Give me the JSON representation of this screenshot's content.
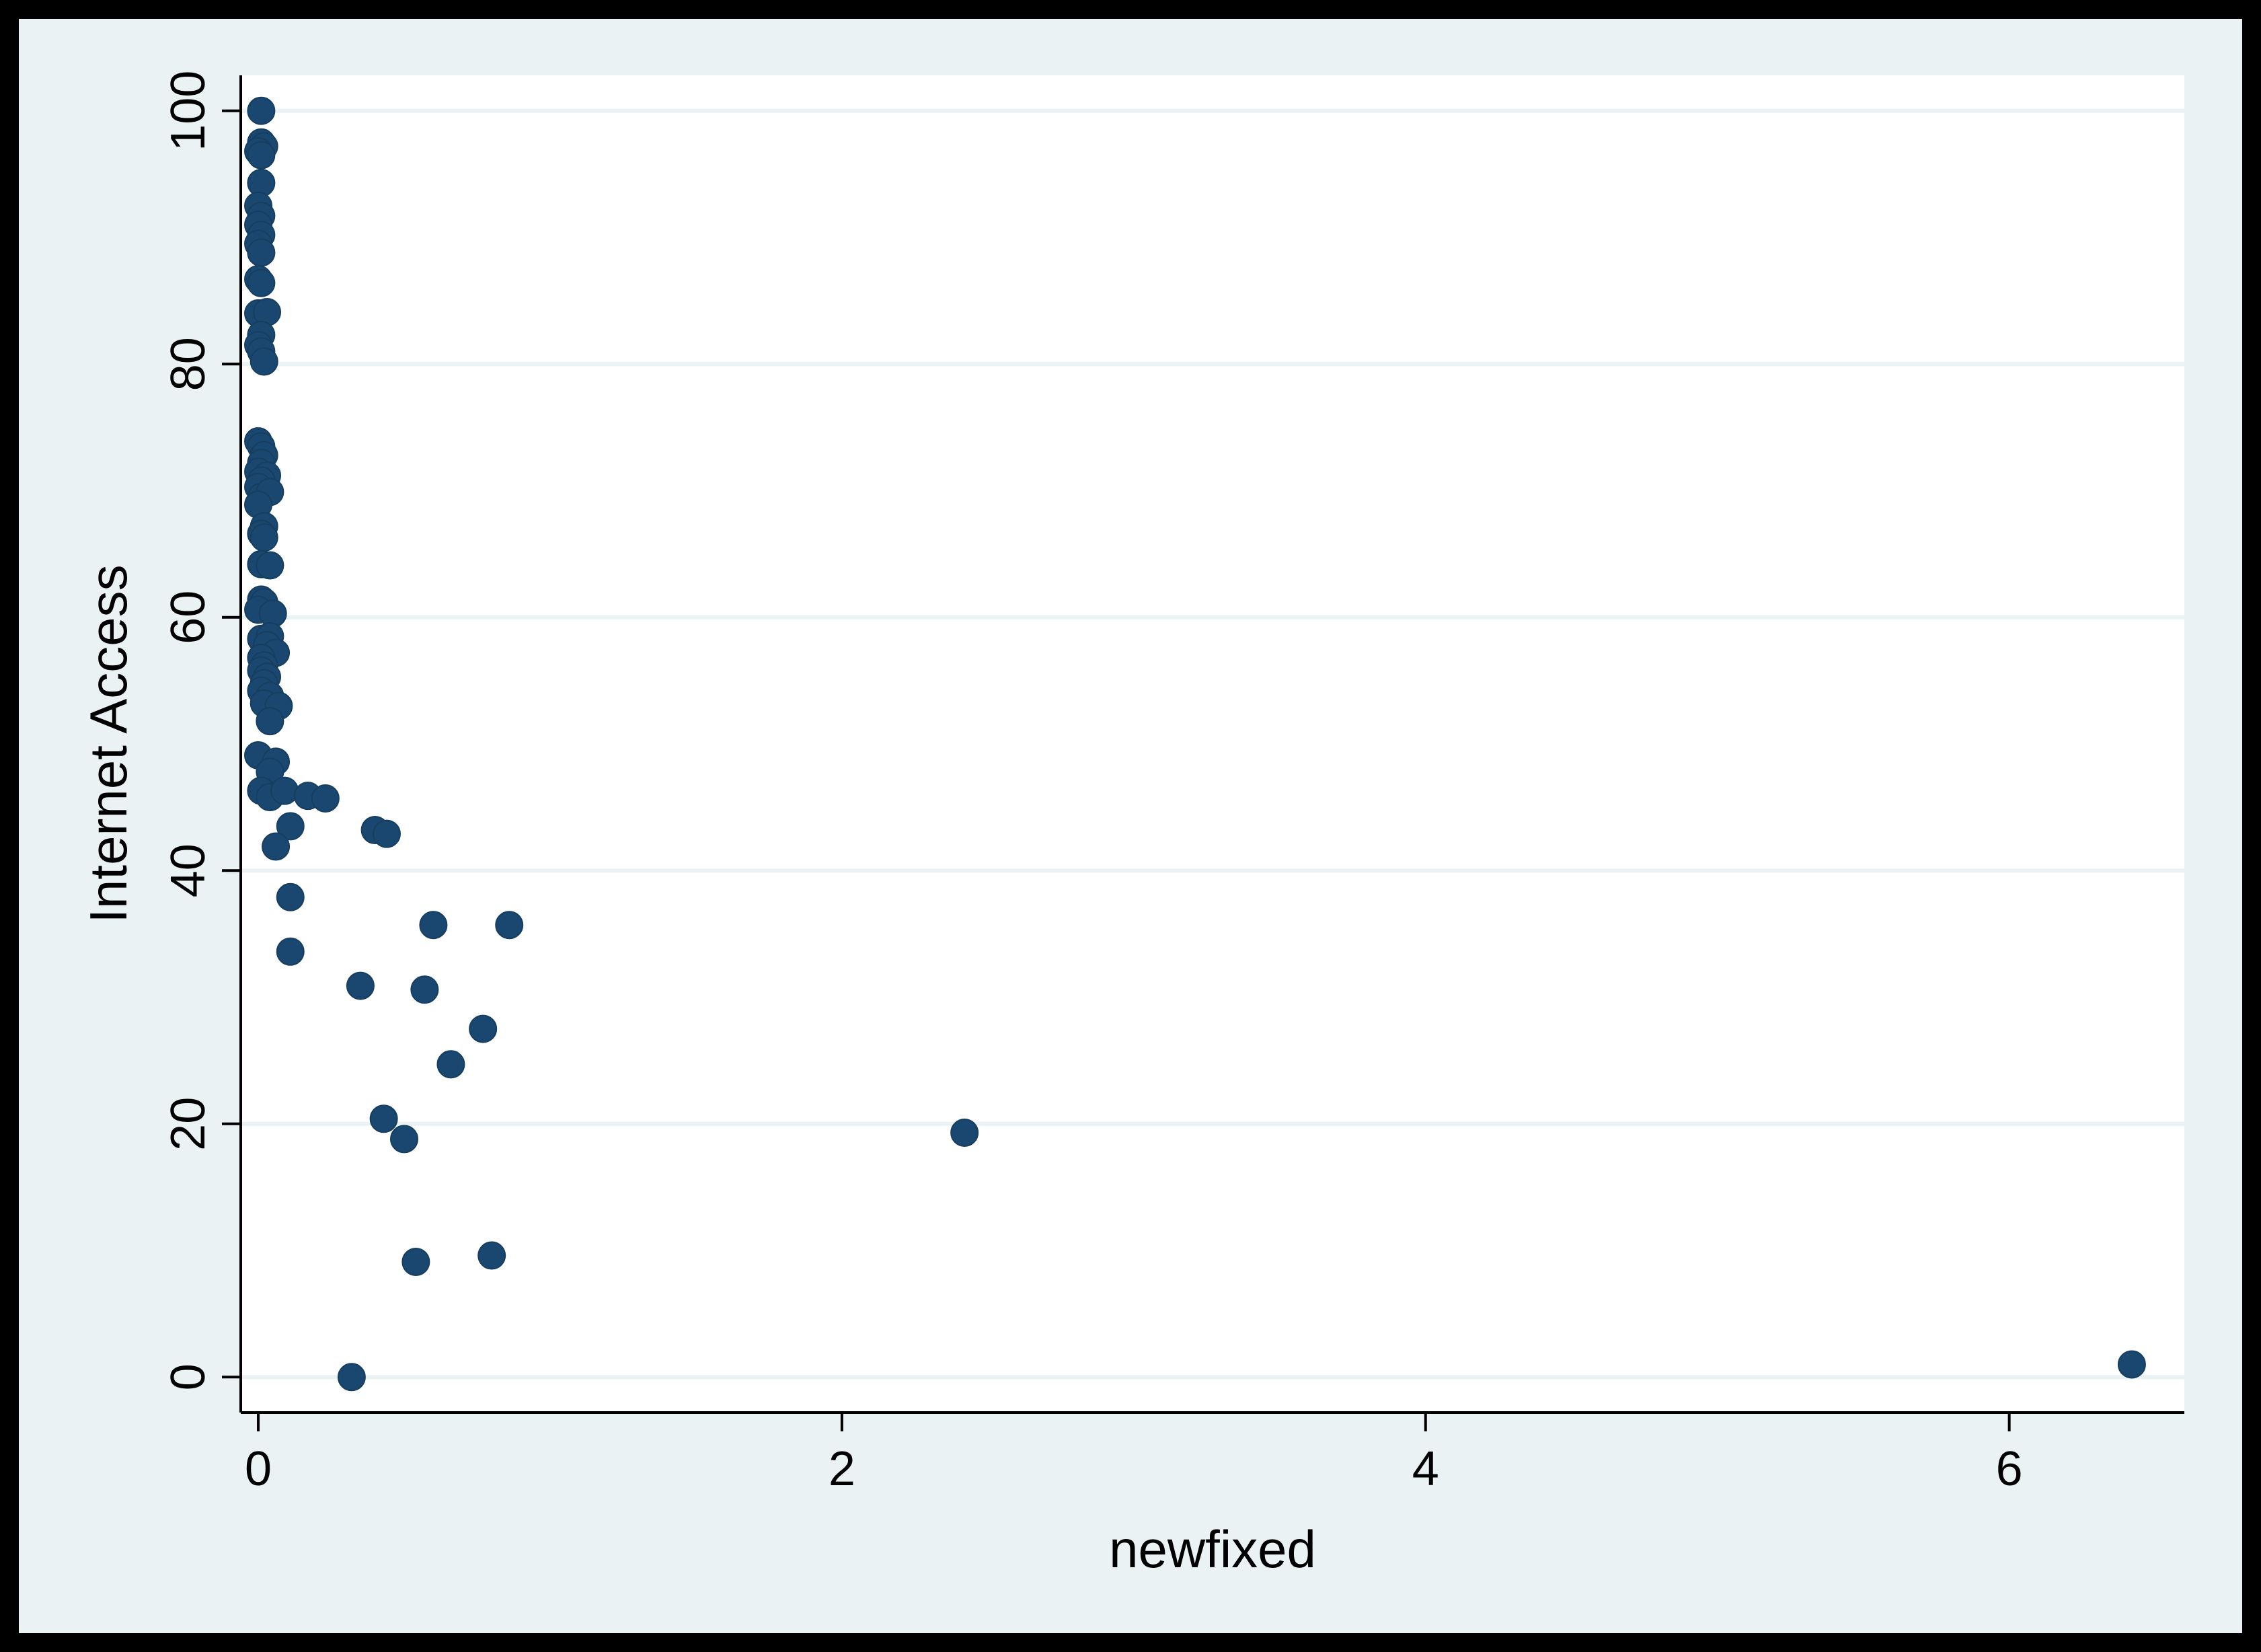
{
  "chart_data": {
    "type": "scatter",
    "title": "",
    "xlabel": "newfixed",
    "ylabel": "Internet Access",
    "xlim": [
      -0.06,
      6.6
    ],
    "ylim": [
      -2.8,
      102.8
    ],
    "xticks": [
      0,
      2,
      4,
      6
    ],
    "yticks": [
      0,
      20,
      40,
      60,
      80,
      100
    ],
    "xtick_labels": [
      "0",
      "2",
      "4",
      "6"
    ],
    "ytick_labels": [
      "0",
      "20",
      "40",
      "60",
      "80",
      "100"
    ],
    "grid": "horizontal",
    "legend": "none",
    "colors": {
      "marker": "#1a476f",
      "plot_background": "#ffffff",
      "outer_background": "#eaf2f3",
      "gridline": "#eaf2f3",
      "frame": "#000000"
    },
    "series": [
      {
        "points": [
          [
            0.01,
            100
          ],
          [
            0.01,
            97.5
          ],
          [
            0.02,
            97.2
          ],
          [
            0.0,
            96.8
          ],
          [
            0.01,
            96.5
          ],
          [
            0.01,
            94.3
          ],
          [
            0.0,
            92.5
          ],
          [
            0.01,
            91.7
          ],
          [
            0.0,
            91.0
          ],
          [
            0.01,
            90.2
          ],
          [
            0.0,
            89.5
          ],
          [
            0.01,
            88.8
          ],
          [
            0.0,
            86.7
          ],
          [
            0.01,
            86.4
          ],
          [
            0.0,
            84.0
          ],
          [
            0.03,
            84.1
          ],
          [
            0.01,
            82.3
          ],
          [
            0.0,
            81.5
          ],
          [
            0.01,
            81.0
          ],
          [
            0.02,
            80.2
          ],
          [
            0.0,
            73.9
          ],
          [
            0.01,
            73.5
          ],
          [
            0.02,
            72.8
          ],
          [
            0.01,
            72.2
          ],
          [
            0.0,
            71.5
          ],
          [
            0.03,
            71.2
          ],
          [
            0.01,
            70.8
          ],
          [
            0.0,
            70.3
          ],
          [
            0.01,
            69.5
          ],
          [
            0.04,
            69.9
          ],
          [
            0.0,
            68.9
          ],
          [
            0.02,
            67.2
          ],
          [
            0.01,
            66.6
          ],
          [
            0.02,
            66.3
          ],
          [
            0.01,
            64.2
          ],
          [
            0.04,
            64.1
          ],
          [
            0.01,
            61.4
          ],
          [
            0.02,
            61.2
          ],
          [
            0.0,
            60.6
          ],
          [
            0.05,
            60.3
          ],
          [
            0.01,
            58.3
          ],
          [
            0.04,
            58.5
          ],
          [
            0.03,
            57.8
          ],
          [
            0.06,
            57.2
          ],
          [
            0.01,
            56.8
          ],
          [
            0.02,
            56.2
          ],
          [
            0.01,
            55.8
          ],
          [
            0.03,
            55.3
          ],
          [
            0.02,
            54.8
          ],
          [
            0.01,
            54.2
          ],
          [
            0.04,
            53.8
          ],
          [
            0.02,
            53.2
          ],
          [
            0.07,
            53.0
          ],
          [
            0.04,
            51.8
          ],
          [
            0.0,
            49.1
          ],
          [
            0.06,
            48.6
          ],
          [
            0.04,
            47.8
          ],
          [
            0.01,
            46.3
          ],
          [
            0.04,
            45.8
          ],
          [
            0.09,
            46.3
          ],
          [
            0.17,
            45.9
          ],
          [
            0.23,
            45.7
          ],
          [
            0.11,
            43.5
          ],
          [
            0.06,
            41.9
          ],
          [
            0.4,
            43.2
          ],
          [
            0.44,
            42.9
          ],
          [
            0.11,
            37.9
          ],
          [
            0.6,
            35.7
          ],
          [
            0.86,
            35.7
          ],
          [
            0.11,
            33.6
          ],
          [
            0.35,
            30.9
          ],
          [
            0.57,
            30.6
          ],
          [
            0.77,
            27.5
          ],
          [
            0.66,
            24.7
          ],
          [
            0.43,
            20.4
          ],
          [
            0.5,
            18.8
          ],
          [
            2.42,
            19.3
          ],
          [
            0.54,
            9.1
          ],
          [
            0.8,
            9.6
          ],
          [
            0.32,
            0.0
          ],
          [
            6.42,
            1.0
          ]
        ]
      }
    ]
  }
}
